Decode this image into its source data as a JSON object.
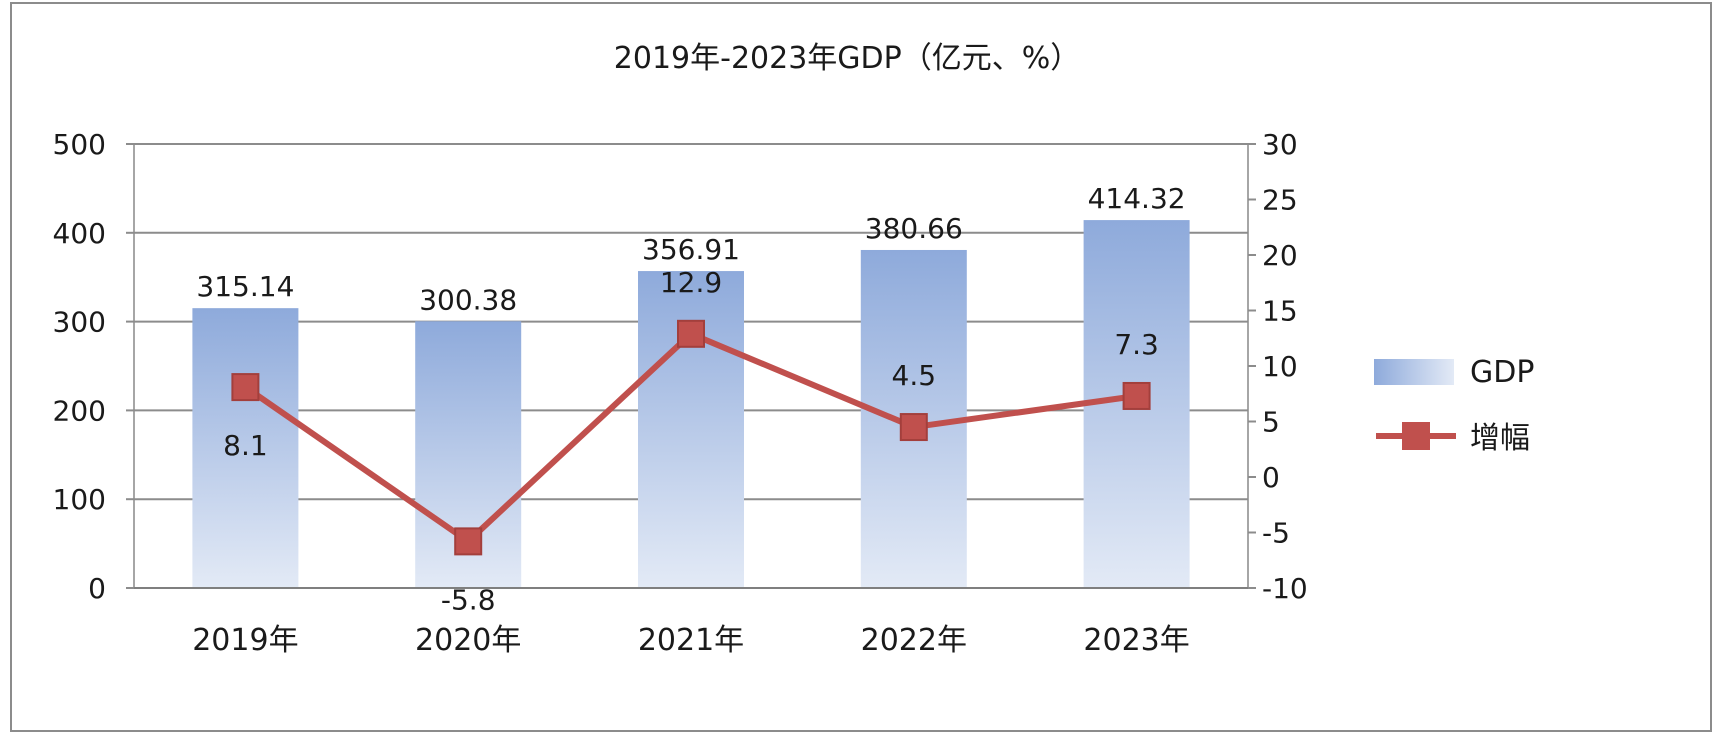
{
  "chart_data": {
    "type": "bar",
    "title": "2019年-2023年GDP（亿元、%）",
    "categories": [
      "2019年",
      "2020年",
      "2021年",
      "2022年",
      "2023年"
    ],
    "series": [
      {
        "name": "GDP",
        "type": "bar",
        "axis": "left",
        "values": [
          315.14,
          300.38,
          356.91,
          380.66,
          414.32
        ],
        "labels": [
          "315.14",
          "300.38",
          "356.91",
          "380.66",
          "414.32"
        ],
        "color": "#8eaadb"
      },
      {
        "name": "增幅",
        "type": "line",
        "axis": "right",
        "values": [
          8.1,
          -5.8,
          12.9,
          4.5,
          7.3
        ],
        "labels": [
          "8.1",
          "-5.8",
          "12.9",
          "4.5",
          "7.3"
        ],
        "color": "#c0504d",
        "marker": "square"
      }
    ],
    "y_left": {
      "ylim": [
        0,
        500
      ],
      "ticks": [
        "0",
        "100",
        "200",
        "300",
        "400",
        "500"
      ]
    },
    "y_right": {
      "ylim": [
        -10,
        30
      ],
      "ticks": [
        "-10",
        "-5",
        "0",
        "5",
        "10",
        "15",
        "20",
        "25",
        "30"
      ]
    },
    "grid": true,
    "legend_position": "right"
  }
}
